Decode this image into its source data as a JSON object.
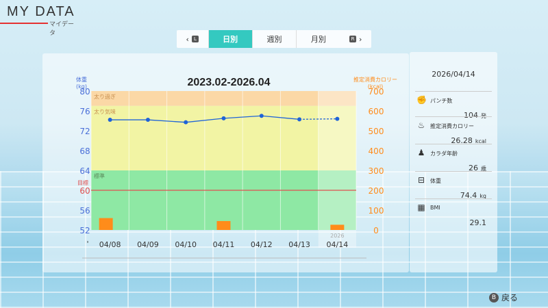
{
  "title": {
    "main": "MY DATA",
    "sub": "マイデータ"
  },
  "tabs": {
    "prev_key": "L",
    "next_key": "R",
    "items": [
      "日別",
      "週別",
      "月別"
    ],
    "active": "日別"
  },
  "chart_data": {
    "type": "line",
    "title": "2023.02-2026.04",
    "left_axis": {
      "label": "体重",
      "unit": "(kg)",
      "ticks": [
        52,
        56,
        60,
        64,
        68,
        72,
        76,
        80
      ],
      "range": [
        52,
        80
      ]
    },
    "right_axis": {
      "label": "推定消費カロリー",
      "unit": "(kcal)",
      "ticks": [
        0,
        100,
        200,
        300,
        400,
        500,
        600,
        700
      ],
      "range": [
        0,
        700
      ]
    },
    "categories": [
      "04/08",
      "04/09",
      "04/10",
      "04/11",
      "04/12",
      "04/13",
      "04/14"
    ],
    "year_label": "2026",
    "series": [
      {
        "name": "体重",
        "axis": "left",
        "values": [
          74.2,
          74.2,
          73.7,
          74.5,
          75.0,
          74.3,
          74.4
        ]
      },
      {
        "name": "推定消費カロリー",
        "axis": "right",
        "values": [
          60,
          0,
          0,
          45,
          0,
          0,
          26.28
        ]
      }
    ],
    "zones": [
      {
        "label": "太り過ぎ",
        "from": 77,
        "to": 80,
        "color": "#fbd8a6"
      },
      {
        "label": "太り気味",
        "from": 64,
        "to": 77,
        "color": "#f2f4a4"
      },
      {
        "label": "標準",
        "from": 52,
        "to": 64,
        "color": "#8ee8a4"
      }
    ],
    "target": {
      "label": "目標",
      "value": 60,
      "color": "#e05050"
    },
    "partial_label": "'",
    "colors": {
      "weight": "#1f63d8",
      "calorie_bar": "#ff8c1a",
      "left_axis": "#4a6fd8",
      "right_axis": "#ff8c1a"
    }
  },
  "side": {
    "date": "2026/04/14",
    "items": [
      {
        "icon": "punch-icon",
        "label": "パンチ数",
        "value": "104",
        "unit": "発"
      },
      {
        "icon": "flame-icon",
        "label": "推定消費カロリー",
        "value": "26.28",
        "unit": "kcal"
      },
      {
        "icon": "muscle-icon",
        "label": "カラダ年齢",
        "value": "26",
        "unit": "歳"
      },
      {
        "icon": "scale-icon",
        "label": "体重",
        "value": "74.4",
        "unit": "kg"
      },
      {
        "icon": "calculator-icon",
        "label": "BMI",
        "value": "29.1",
        "unit": ""
      }
    ]
  },
  "back": {
    "key": "B",
    "label": "戻る"
  }
}
